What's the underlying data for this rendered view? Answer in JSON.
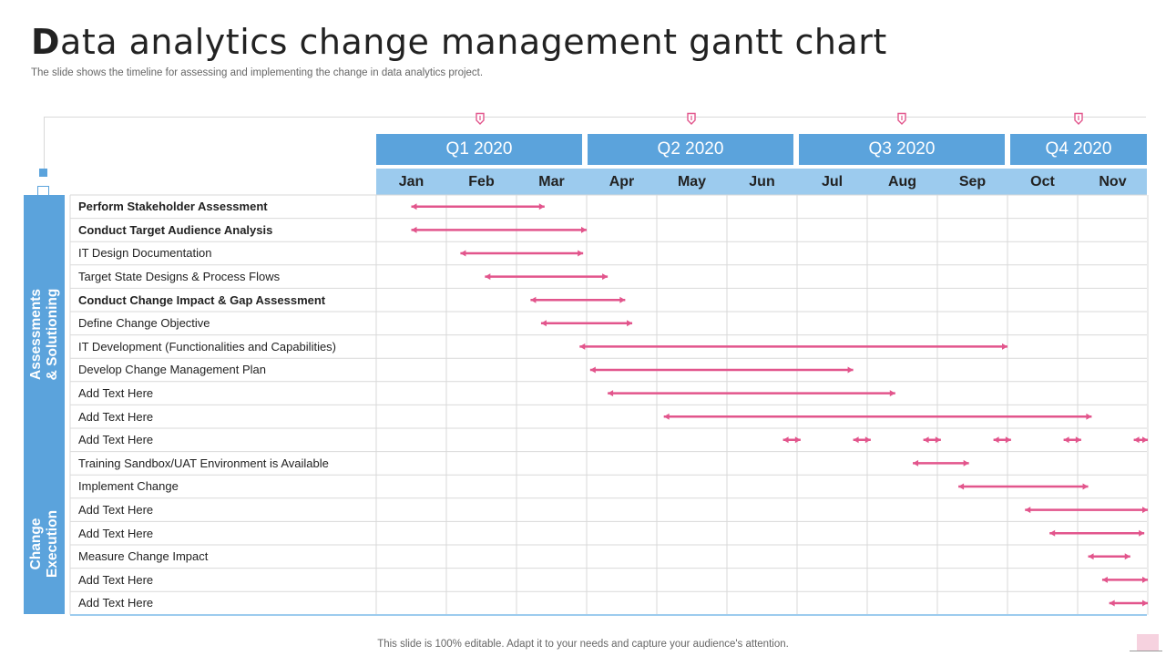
{
  "header": {
    "title_first_letter": "D",
    "title_rest": "ata analytics change management gantt chart",
    "subtitle": "The slide shows the timeline for assessing and implementing the change in data analytics project."
  },
  "footer": {
    "text": "This slide is 100% editable. Adapt it to your needs and capture your audience's attention."
  },
  "colors": {
    "accent_blue": "#5ba3dc",
    "light_blue": "#9ccbee",
    "bar_pink": "#e2558c",
    "grid": "#d9d9d9"
  },
  "icons": {
    "milestone": "bookmark-flag-icon"
  },
  "timeline": {
    "quarters": [
      "Q1 2020",
      "Q2 2020",
      "Q3 2020",
      "Q4 2020"
    ],
    "months": [
      "Jan",
      "Feb",
      "Mar",
      "Apr",
      "May",
      "Jun",
      "Jul",
      "Aug",
      "Sep",
      "Oct",
      "Nov"
    ]
  },
  "phases": [
    {
      "line1": "Assessments",
      "line2": "& Solutioning"
    },
    {
      "line1": "Change",
      "line2": "Execution"
    }
  ],
  "chart_data": {
    "type": "gantt",
    "unit": "month (0 = start of Jan)",
    "tasks": [
      {
        "label": "Perform Stakeholder Assessment",
        "bold": true,
        "bars": [
          [
            0.5,
            2.4
          ]
        ]
      },
      {
        "label": "Conduct Target Audience Analysis",
        "bold": true,
        "bars": [
          [
            0.5,
            3.0
          ]
        ]
      },
      {
        "label": "IT Design Documentation",
        "bold": false,
        "bars": [
          [
            1.2,
            2.95
          ]
        ]
      },
      {
        "label": "Target State Designs & Process Flows",
        "bold": false,
        "bars": [
          [
            1.55,
            3.3
          ]
        ]
      },
      {
        "label": "Conduct Change Impact & Gap Assessment",
        "bold": true,
        "bars": [
          [
            2.2,
            3.55
          ]
        ]
      },
      {
        "label": "Define Change Objective",
        "bold": false,
        "bars": [
          [
            2.35,
            3.65
          ]
        ]
      },
      {
        "label": "IT Development  (Functionalities and Capabilities)",
        "bold": false,
        "bars": [
          [
            2.9,
            9.0
          ]
        ]
      },
      {
        "label": "Develop  Change  Management  Plan",
        "bold": false,
        "bars": [
          [
            3.05,
            6.8
          ]
        ]
      },
      {
        "label": "Add Text Here",
        "bold": false,
        "bars": [
          [
            3.3,
            7.4
          ]
        ]
      },
      {
        "label": "Add Text Here",
        "bold": false,
        "bars": [
          [
            4.1,
            10.2
          ]
        ]
      },
      {
        "label": "Add Text Here",
        "bold": false,
        "bars": [
          [
            5.8,
            6.05
          ],
          [
            6.8,
            7.05
          ],
          [
            7.8,
            8.05
          ],
          [
            8.8,
            9.05
          ],
          [
            9.8,
            10.05
          ],
          [
            10.8,
            11.0
          ]
        ]
      },
      {
        "label": "Training  Sandbox/UAT  Environment  is Available",
        "bold": false,
        "bars": [
          [
            7.65,
            8.45
          ]
        ]
      },
      {
        "label": "Implement  Change",
        "bold": false,
        "bars": [
          [
            8.3,
            10.15
          ]
        ]
      },
      {
        "label": "Add Text Here",
        "bold": false,
        "bars": [
          [
            9.25,
            11.0
          ]
        ]
      },
      {
        "label": "Add Text Here",
        "bold": false,
        "bars": [
          [
            9.6,
            10.95
          ]
        ]
      },
      {
        "label": "Measure Change Impact",
        "bold": false,
        "bars": [
          [
            10.15,
            10.75
          ]
        ]
      },
      {
        "label": "Add Text Here",
        "bold": false,
        "bars": [
          [
            10.35,
            11.0
          ]
        ]
      },
      {
        "label": "Add Text Here",
        "bold": false,
        "bars": [
          [
            10.45,
            11.0
          ]
        ]
      }
    ]
  }
}
